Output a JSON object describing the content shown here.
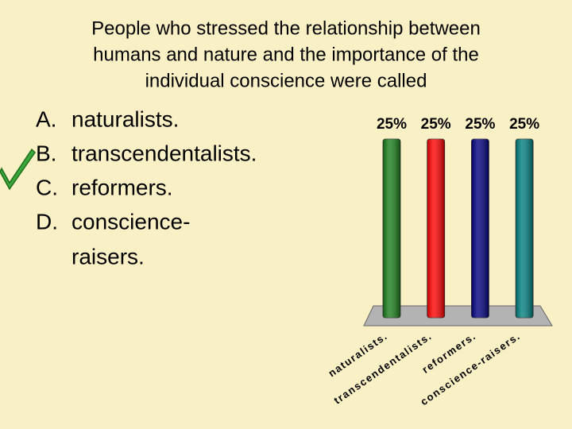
{
  "question_lines": [
    "People who stressed the relationship between",
    "humans and nature and the importance of the",
    "individual conscience were called"
  ],
  "options": [
    {
      "letter": "A.",
      "lines": [
        "naturalists."
      ]
    },
    {
      "letter": "B.",
      "lines": [
        "transcendentalists."
      ]
    },
    {
      "letter": "C.",
      "lines": [
        "reformers."
      ]
    },
    {
      "letter": "D.",
      "lines": [
        "conscience-",
        "raisers."
      ]
    }
  ],
  "chart_data": {
    "type": "bar",
    "categories": [
      "naturalists.",
      "transcendentalists.",
      "reformers.",
      "conscience-raisers."
    ],
    "values": [
      25,
      25,
      25,
      25
    ],
    "value_labels": [
      "25%",
      "25%",
      "25%",
      "25%"
    ],
    "colors": [
      "#1a7f1a",
      "#ff0000",
      "#000080",
      "#008080"
    ]
  }
}
